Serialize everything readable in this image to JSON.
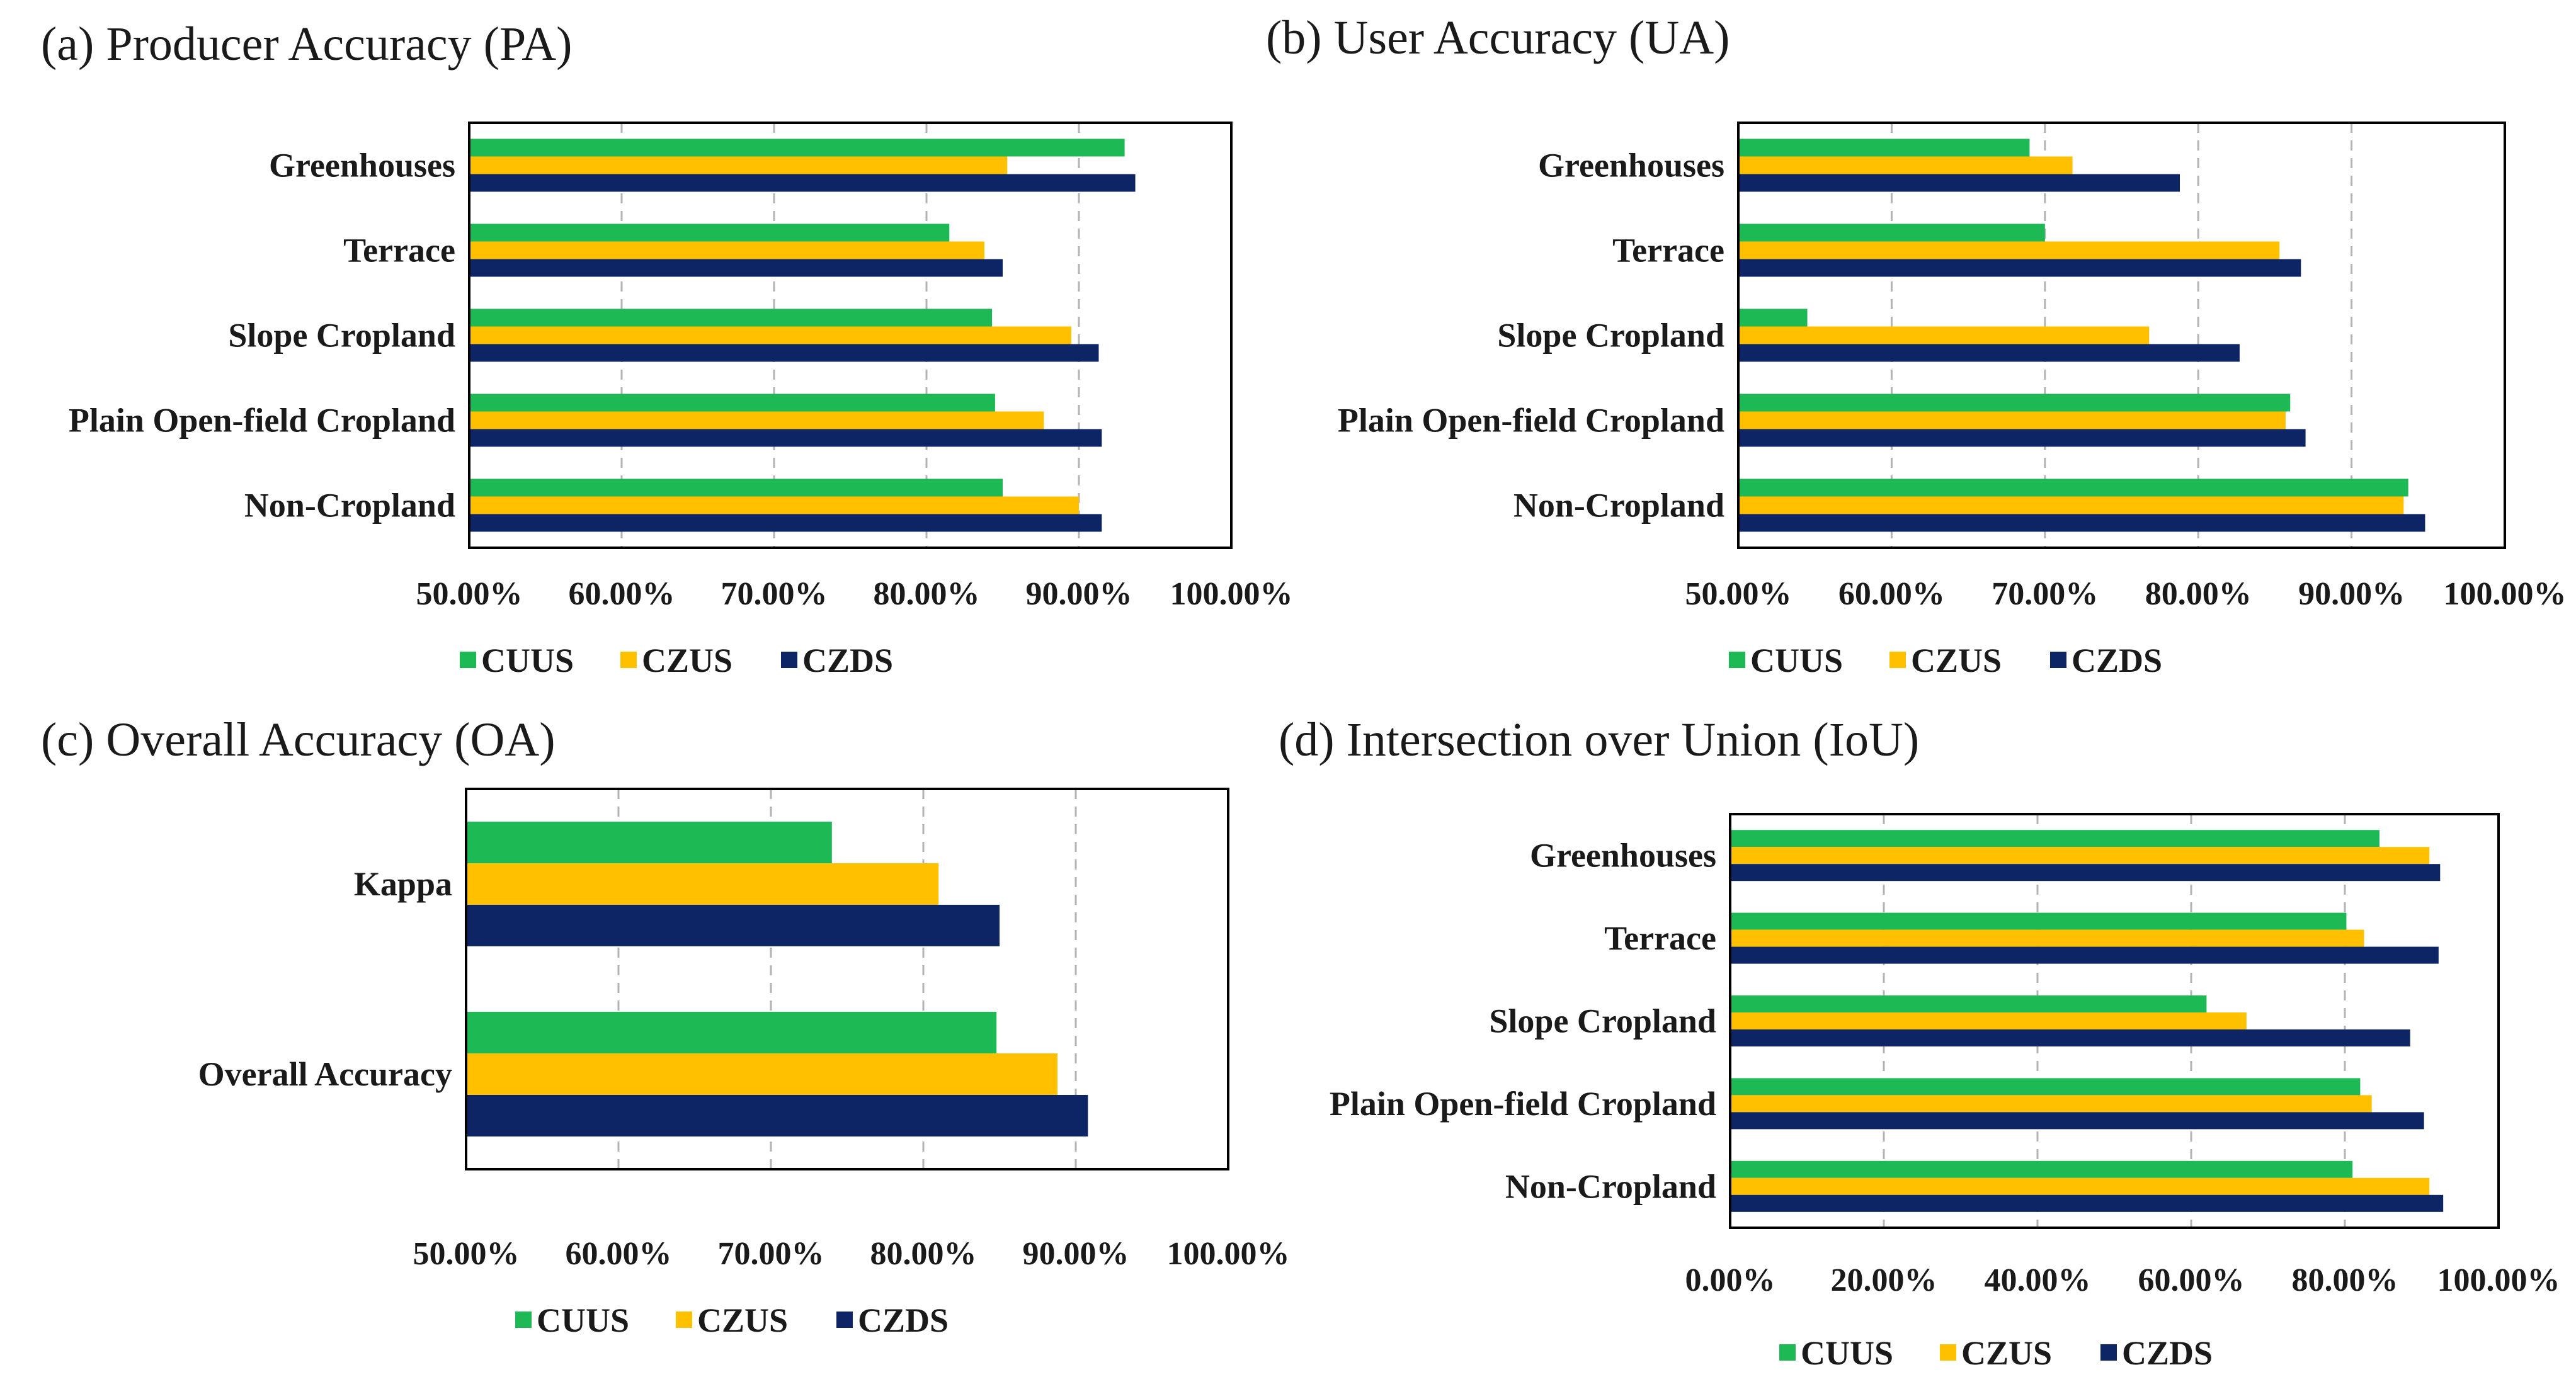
{
  "colors": {
    "CUUS": "#1db954",
    "CZUS": "#ffc000",
    "CZDS": "#0d2565"
  },
  "chart_data": [
    {
      "panel": "a",
      "type": "bar",
      "orientation": "horizontal",
      "title": "(a) Producer Accuracy (PA)",
      "categories": [
        "Greenhouses",
        "Terrace",
        "Slope Cropland",
        "Plain Open-field Cropland",
        "Non-Cropland"
      ],
      "series": [
        {
          "name": "CUUS",
          "values": [
            93.0,
            81.5,
            84.3,
            84.5,
            85.0
          ]
        },
        {
          "name": "CZUS",
          "values": [
            85.3,
            83.8,
            89.5,
            87.7,
            90.0
          ]
        },
        {
          "name": "CZDS",
          "values": [
            93.7,
            85.0,
            91.3,
            91.5,
            91.5
          ]
        }
      ],
      "xlim": [
        50,
        100
      ],
      "xticks": [
        50,
        60,
        70,
        80,
        90,
        100
      ],
      "tick_labels": [
        "50.00%",
        "60.00%",
        "70.00%",
        "80.00%",
        "90.00%",
        "100.00%"
      ],
      "grid": true,
      "legend": "bottom"
    },
    {
      "panel": "b",
      "type": "bar",
      "orientation": "horizontal",
      "title": "(b) User Accuracy (UA)",
      "categories": [
        "Greenhouses",
        "Terrace",
        "Slope Cropland",
        "Plain Open-field Cropland",
        "Non-Cropland"
      ],
      "series": [
        {
          "name": "CUUS",
          "values": [
            69.0,
            70.0,
            54.5,
            86.0,
            93.7
          ]
        },
        {
          "name": "CZUS",
          "values": [
            71.8,
            85.3,
            76.8,
            85.7,
            93.4
          ]
        },
        {
          "name": "CZDS",
          "values": [
            78.8,
            86.7,
            82.7,
            87.0,
            94.8
          ]
        }
      ],
      "xlim": [
        50,
        100
      ],
      "xticks": [
        50,
        60,
        70,
        80,
        90,
        100
      ],
      "tick_labels": [
        "50.00%",
        "60.00%",
        "70.00%",
        "80.00%",
        "90.00%",
        "100.00%"
      ],
      "grid": true,
      "legend": "bottom"
    },
    {
      "panel": "c",
      "type": "bar",
      "orientation": "horizontal",
      "title": "(c) Overall Accuracy (OA)",
      "categories": [
        "Kappa",
        "Overall Accuracy"
      ],
      "series": [
        {
          "name": "CUUS",
          "values": [
            74.0,
            84.8
          ]
        },
        {
          "name": "CZUS",
          "values": [
            81.0,
            88.8
          ]
        },
        {
          "name": "CZDS",
          "values": [
            85.0,
            90.8
          ]
        }
      ],
      "xlim": [
        50,
        100
      ],
      "xticks": [
        50,
        60,
        70,
        80,
        90,
        100
      ],
      "tick_labels": [
        "50.00%",
        "60.00%",
        "70.00%",
        "80.00%",
        "90.00%",
        "100.00%"
      ],
      "grid": true,
      "legend": "bottom"
    },
    {
      "panel": "d",
      "type": "bar",
      "orientation": "horizontal",
      "title": "(d) Intersection over Union (IoU)",
      "categories": [
        "Greenhouses",
        "Terrace",
        "Slope Cropland",
        "Plain Open-field Cropland",
        "Non-Cropland"
      ],
      "series": [
        {
          "name": "CUUS",
          "values": [
            84.5,
            80.2,
            62.0,
            82.0,
            81.0
          ]
        },
        {
          "name": "CZUS",
          "values": [
            91.0,
            82.5,
            67.2,
            83.5,
            91.0
          ]
        },
        {
          "name": "CZDS",
          "values": [
            92.4,
            92.2,
            88.5,
            90.3,
            92.8
          ]
        }
      ],
      "xlim": [
        0,
        100
      ],
      "xticks": [
        0,
        20,
        40,
        60,
        80,
        100
      ],
      "tick_labels": [
        "0.00%",
        "20.00%",
        "40.00%",
        "60.00%",
        "80.00%",
        "100.00%"
      ],
      "grid": true,
      "legend": "bottom"
    }
  ]
}
